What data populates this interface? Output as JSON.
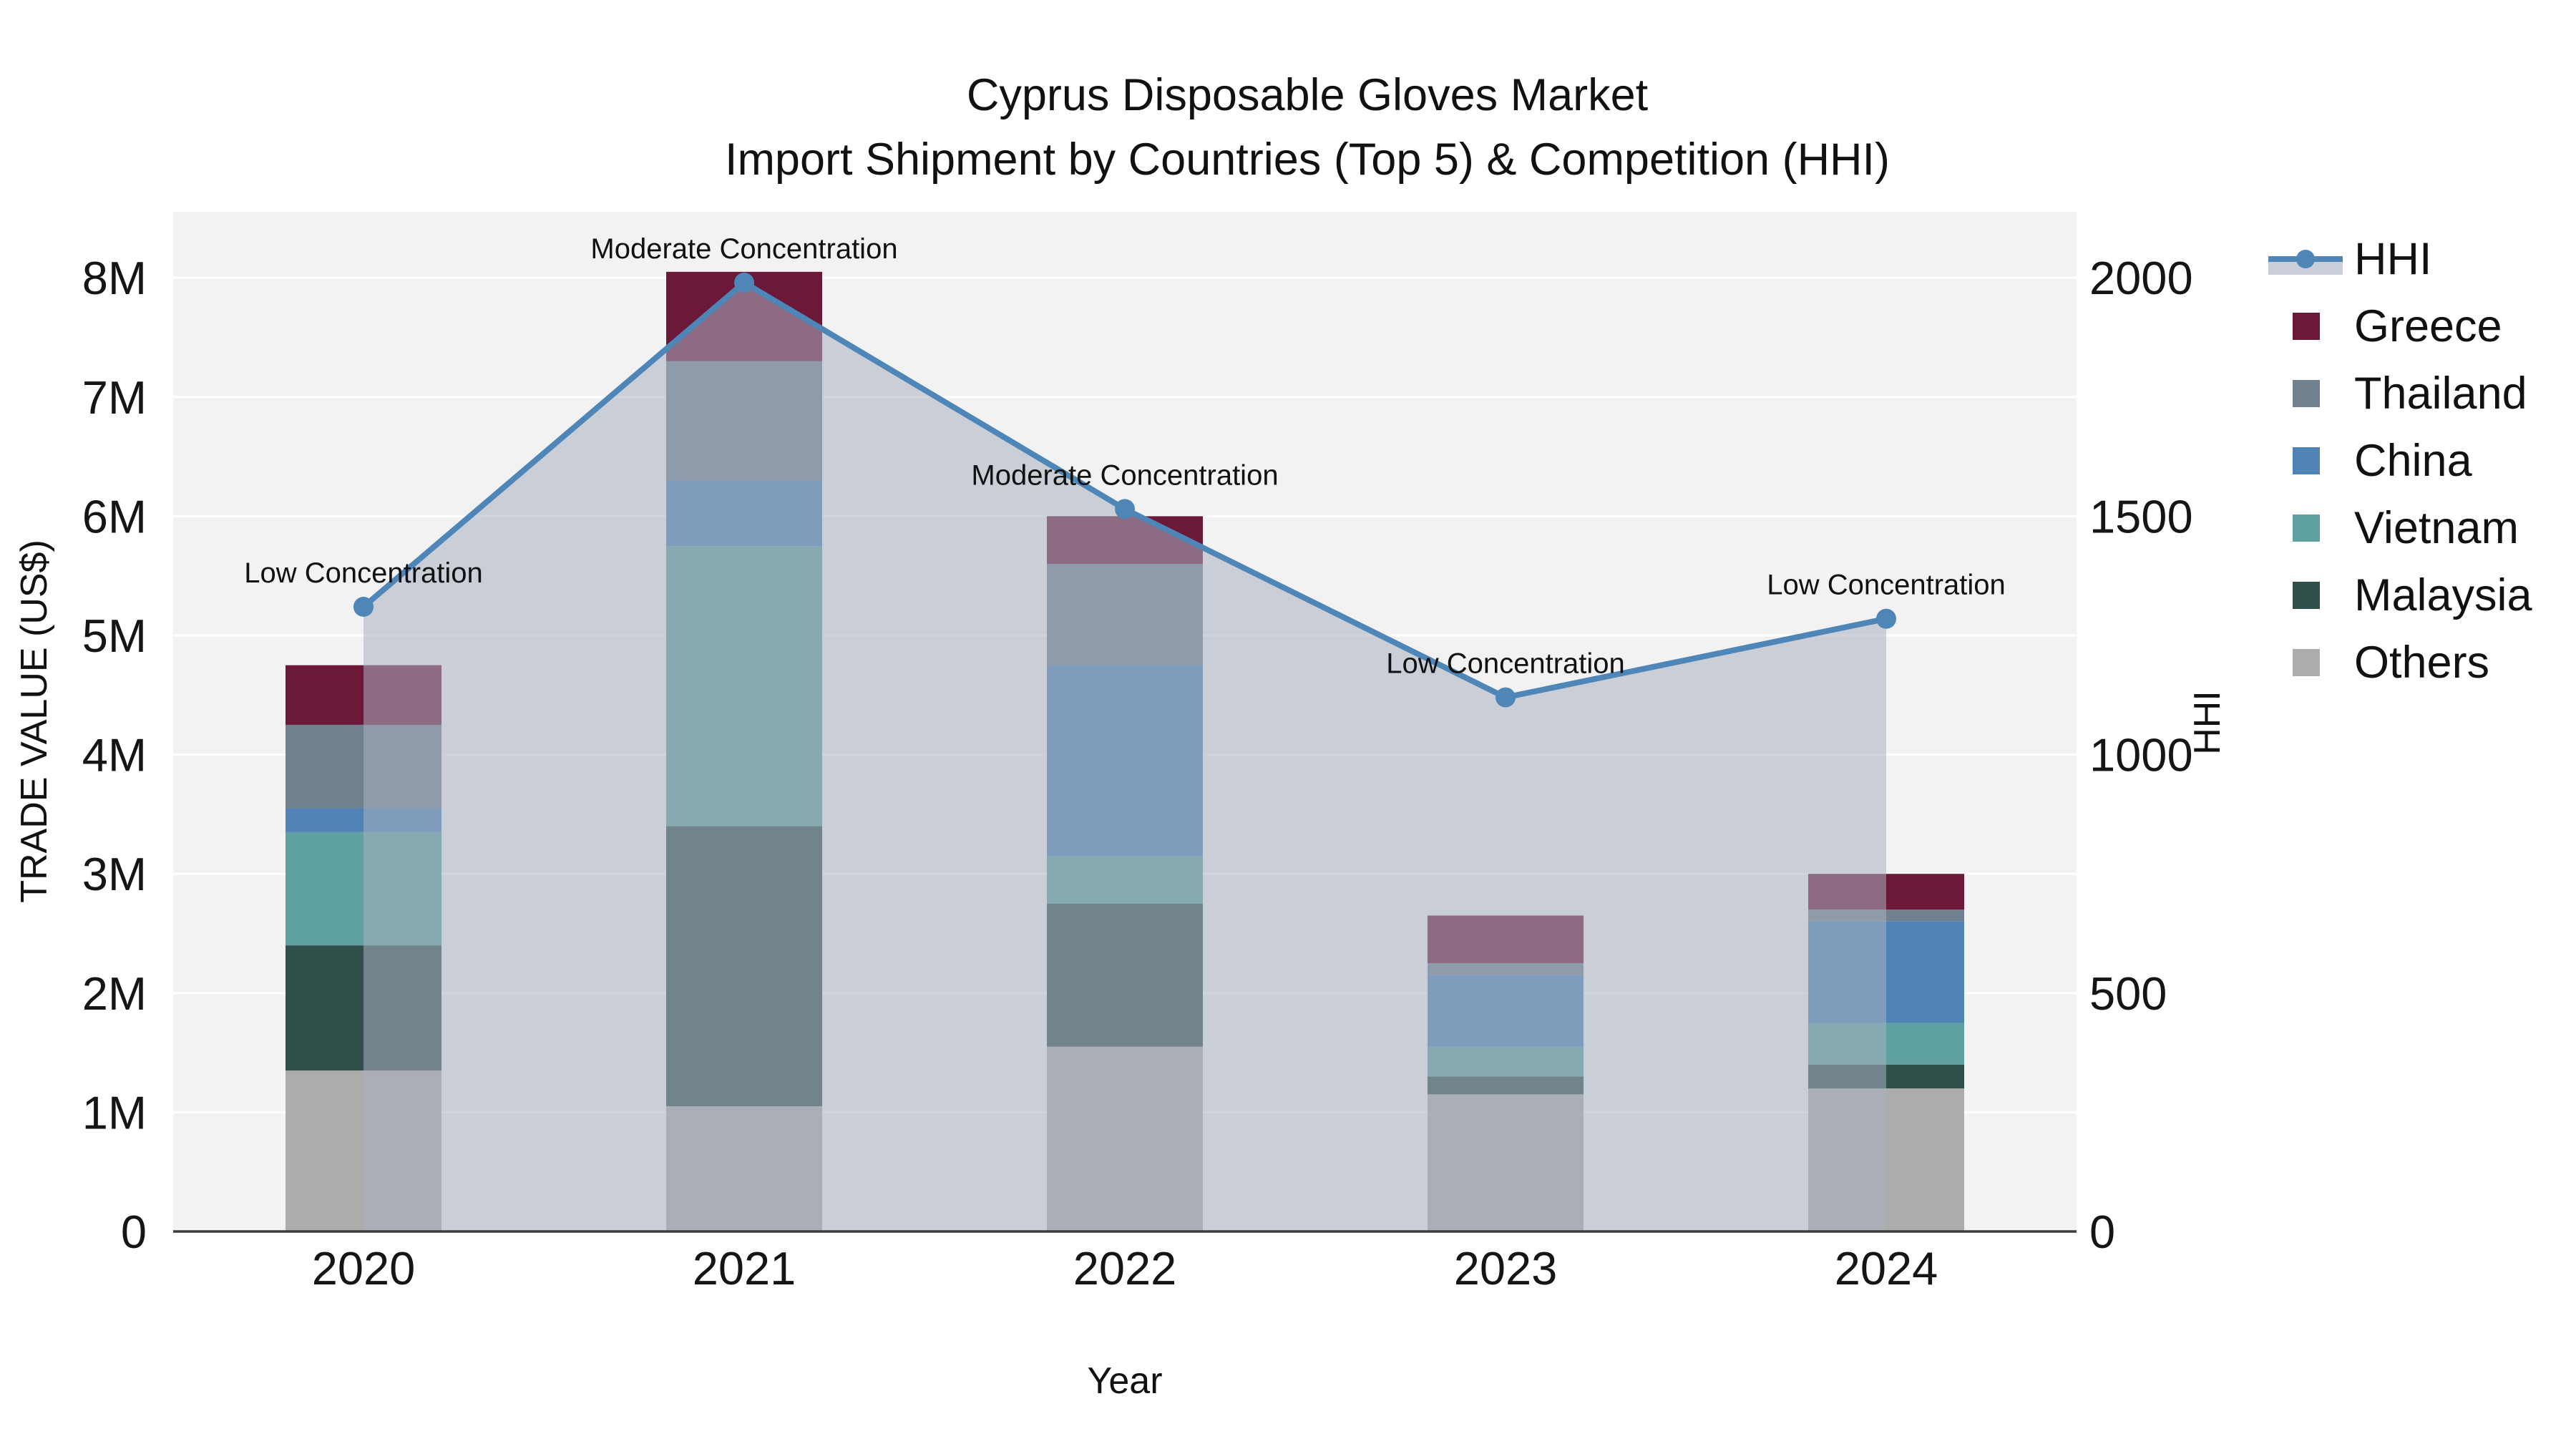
{
  "title": {
    "line1": "Cyprus Disposable Gloves Market",
    "line2": "Import Shipment by Countries (Top 5) & Competition (HHI)"
  },
  "axes": {
    "left": {
      "title": "TRADE VALUE (US$)",
      "tick_labels": [
        "0",
        "1M",
        "2M",
        "3M",
        "4M",
        "5M",
        "6M",
        "7M",
        "8M"
      ]
    },
    "right": {
      "title": "HHI",
      "tick_labels": [
        "0",
        "500",
        "1000",
        "1500",
        "2000"
      ]
    },
    "x": {
      "title": "Year",
      "tick_labels": [
        "2020",
        "2021",
        "2022",
        "2023",
        "2024"
      ]
    }
  },
  "legend": {
    "items": [
      {
        "label": "HHI",
        "color": "#4E86B8",
        "swatch": "line"
      },
      {
        "label": "Greece",
        "color": "#6B1839",
        "swatch": "square"
      },
      {
        "label": "Thailand",
        "color": "#71808F",
        "swatch": "square"
      },
      {
        "label": "China",
        "color": "#4F83B5",
        "swatch": "square"
      },
      {
        "label": "Vietnam",
        "color": "#5FA0A0",
        "swatch": "square"
      },
      {
        "label": "Malaysia",
        "color": "#2F4F4B",
        "swatch": "square"
      },
      {
        "label": "Others",
        "color": "#ACACAA",
        "swatch": "square"
      }
    ]
  },
  "chart_data": {
    "type": "bar",
    "subtype": "stacked-bars-with-hhi-line-overlay",
    "unit": "US$ millions",
    "categories": [
      "2020",
      "2021",
      "2022",
      "2023",
      "2024"
    ],
    "series": [
      {
        "name": "Greece",
        "color": "#6B1839",
        "values": [
          0.5,
          0.75,
          0.4,
          0.4,
          0.3
        ]
      },
      {
        "name": "Thailand",
        "color": "#71808F",
        "values": [
          0.7,
          1.0,
          0.85,
          0.1,
          0.1
        ]
      },
      {
        "name": "China",
        "color": "#4F83B5",
        "values": [
          0.2,
          0.55,
          1.6,
          0.6,
          0.85
        ]
      },
      {
        "name": "Vietnam",
        "color": "#5FA0A0",
        "values": [
          0.95,
          2.35,
          0.4,
          0.25,
          0.35
        ]
      },
      {
        "name": "Malaysia",
        "color": "#2F4F4B",
        "values": [
          1.05,
          2.35,
          1.2,
          0.15,
          0.2
        ]
      },
      {
        "name": "Others",
        "color": "#ACACAA",
        "values": [
          1.35,
          1.05,
          1.55,
          1.15,
          1.2
        ]
      }
    ],
    "stack_order_bottom_to_top": [
      "Others",
      "Malaysia",
      "Vietnam",
      "China",
      "Thailand",
      "Greece"
    ],
    "totals_musd": [
      4.75,
      8.05,
      6.0,
      2.65,
      3.0
    ],
    "line_series": {
      "name": "HHI",
      "color": "#4E86B8",
      "area_fill": "rgba(167,176,193,0.55)",
      "values": [
        1310,
        1990,
        1515,
        1120,
        1285
      ],
      "axis": "right"
    },
    "annotations": [
      {
        "category": "2020",
        "text": "Low Concentration"
      },
      {
        "category": "2021",
        "text": "Moderate Concentration"
      },
      {
        "category": "2022",
        "text": "Moderate Concentration"
      },
      {
        "category": "2023",
        "text": "Low Concentration"
      },
      {
        "category": "2024",
        "text": "Low Concentration"
      }
    ],
    "left_ylim_musd": [
      0,
      8
    ],
    "right_ylim": [
      0,
      2000
    ],
    "grid": true,
    "plot_bg": "#F2F2F2",
    "grid_color": "#FFFFFF",
    "axis_line_color": "#3C3C3C",
    "legend_position": "right"
  }
}
